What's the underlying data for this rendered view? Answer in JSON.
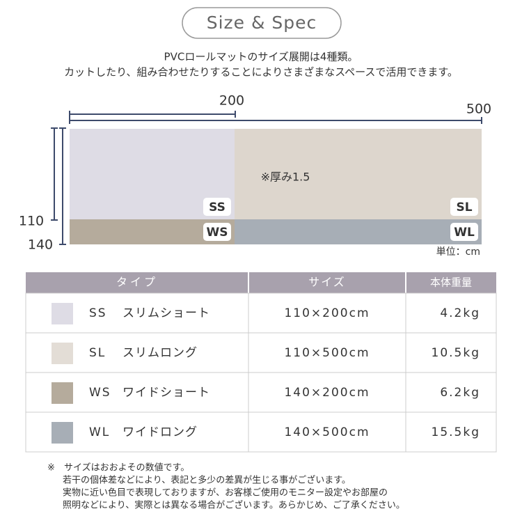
{
  "header": {
    "title": "Size & Spec",
    "intro": [
      "PVCロールマットのサイズ展開は4種類。",
      "カットしたり、組み合わせたりすることによりさまざまなスペースで活用できます。"
    ]
  },
  "diagram": {
    "width_short": "200",
    "width_long": "500",
    "height_short": "110",
    "height_long": "140",
    "thickness": "※厚み1.5",
    "unit": "単位：cm",
    "regions": [
      {
        "label": "SS",
        "color": "#dedce5"
      },
      {
        "label": "SL",
        "color": "#ddd6cd"
      },
      {
        "label": "WS",
        "color": "#b5ab9c"
      },
      {
        "label": "WL",
        "color": "#a7aeb6"
      }
    ]
  },
  "table": {
    "header": [
      "タイプ",
      "サイズ",
      "本体重量"
    ],
    "rows": [
      {
        "code": "SS",
        "name": "スリムショート",
        "size": "110×200cm",
        "weight": "4.2kg",
        "color": "#dedce5"
      },
      {
        "code": "SL",
        "name": "スリムロング",
        "size": "110×500cm",
        "weight": "10.5kg",
        "color": "#e3ddd6"
      },
      {
        "code": "WS",
        "name": "ワイドショート",
        "size": "140×200cm",
        "weight": "6.2kg",
        "color": "#b5ab9c"
      },
      {
        "code": "WL",
        "name": "ワイドロング",
        "size": "140×500cm",
        "weight": "15.5kg",
        "color": "#a7aeb6"
      }
    ]
  },
  "notes": {
    "mark": "※",
    "lines": [
      "サイズはおおよその数値です。",
      "若干の個体差などにより、表記と多少の差異が生じる事がございます。",
      "実物に近い色目で表現しておりますが、お客様ご使用のモニター設定やお部屋の",
      "照明などにより、実際とは異なる場合がございます。あらかじめ、ご了承ください。"
    ]
  }
}
